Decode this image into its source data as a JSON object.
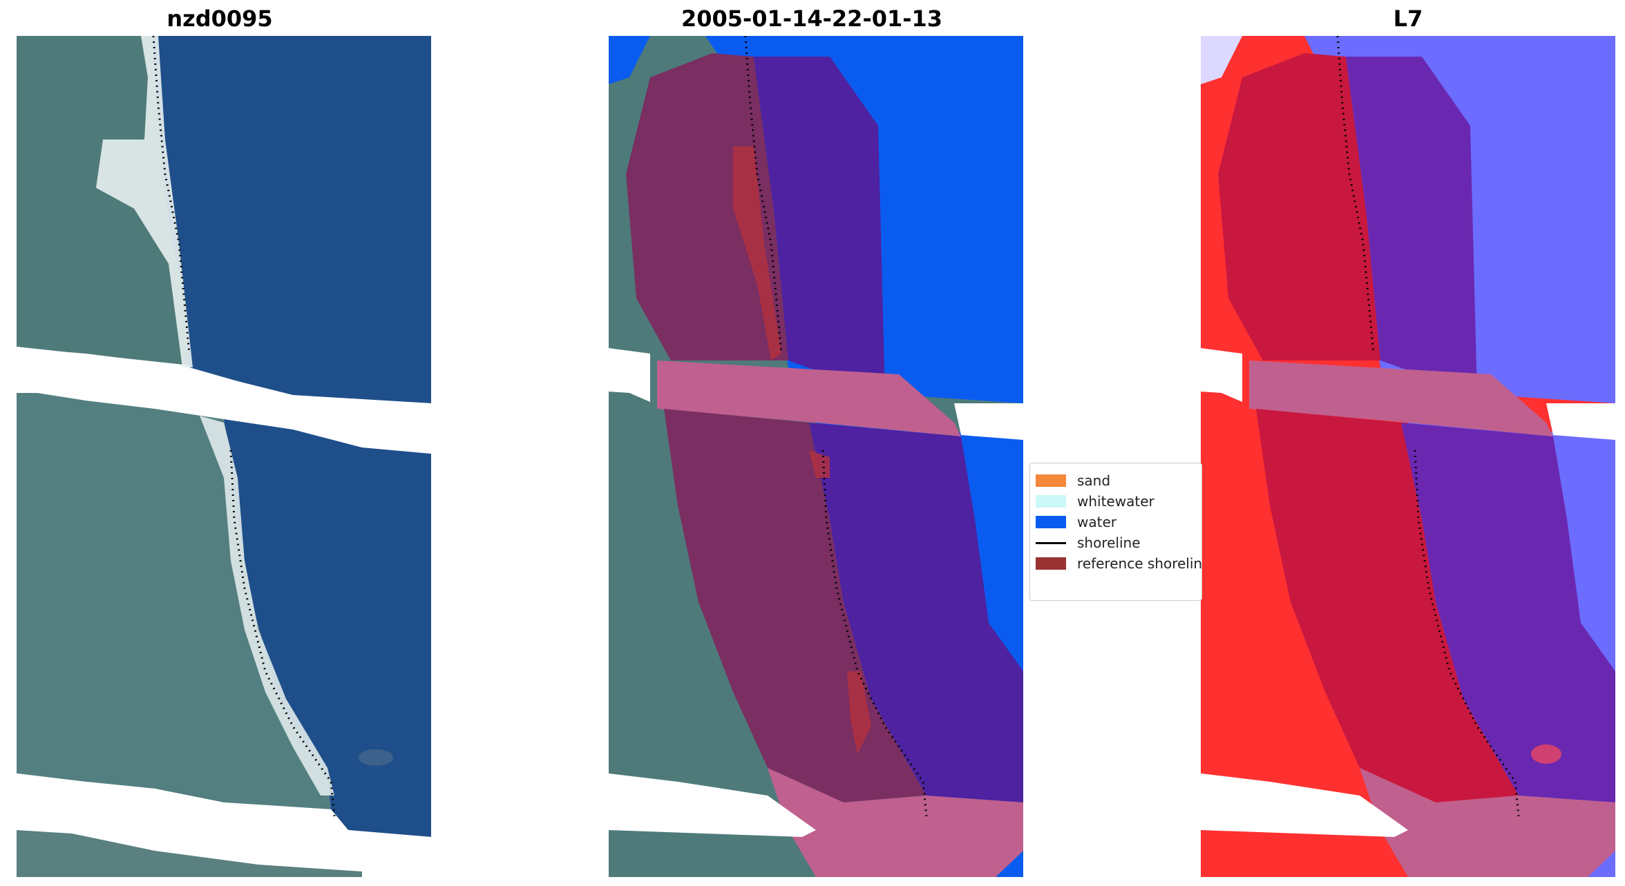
{
  "titles": {
    "left": "nzd0095",
    "middle": "2005-01-14-22-01-13",
    "right": "L7"
  },
  "legend": {
    "items": [
      {
        "label": "sand",
        "color": "#f5883a"
      },
      {
        "label": "whitewater",
        "color": "#ccf7f7"
      },
      {
        "label": "water",
        "color": "#0a5cf0"
      },
      {
        "label": "shoreline",
        "color": "#000000"
      },
      {
        "label": "reference shoreline",
        "color": "#993333"
      }
    ]
  },
  "colors": {
    "land_rgb": "#4f7a7a",
    "land_dark": "#3f6868",
    "sea_rgb": "#1f4f8a",
    "sea_dark": "#1a4580",
    "beach_white": "#e8efee",
    "water_class": "#0a5cf0",
    "buffer_pink": "#c0608f",
    "buffer_land": "#7a2e62",
    "buffer_water": "#4e22a0",
    "ref_shoreline": "#b03040",
    "l7_red": "#ff3030",
    "l7_red_buffer": "#c8183f",
    "l7_blue": "#6c6cff",
    "l7_blue_buffer": "#6a28b0"
  }
}
